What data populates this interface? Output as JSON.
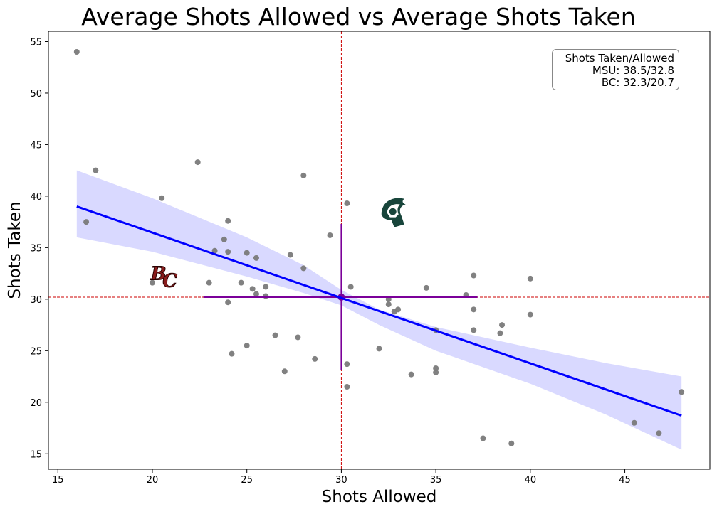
{
  "chart_data": {
    "type": "scatter",
    "title": "Average Shots Allowed vs Average Shots Taken",
    "xlabel": "Shots Allowed",
    "ylabel": "Shots Taken",
    "xlim": [
      14.5,
      49.5
    ],
    "ylim": [
      13.5,
      56.0
    ],
    "xticks": [
      15,
      20,
      25,
      30,
      35,
      40,
      45
    ],
    "yticks": [
      15,
      20,
      25,
      30,
      35,
      40,
      45,
      50,
      55
    ],
    "grid": false,
    "points": [
      [
        16.0,
        54.0
      ],
      [
        16.5,
        37.5
      ],
      [
        17.0,
        42.5
      ],
      [
        20.0,
        31.6
      ],
      [
        20.5,
        39.8
      ],
      [
        22.4,
        43.3
      ],
      [
        23.0,
        31.6
      ],
      [
        23.3,
        34.7
      ],
      [
        23.8,
        35.8
      ],
      [
        24.0,
        37.6
      ],
      [
        24.0,
        34.6
      ],
      [
        24.0,
        29.7
      ],
      [
        24.2,
        24.7
      ],
      [
        24.7,
        31.6
      ],
      [
        25.0,
        34.5
      ],
      [
        25.0,
        25.5
      ],
      [
        25.3,
        31.0
      ],
      [
        25.5,
        30.5
      ],
      [
        25.5,
        34.0
      ],
      [
        26.0,
        31.2
      ],
      [
        26.0,
        30.3
      ],
      [
        26.5,
        26.5
      ],
      [
        27.0,
        23.0
      ],
      [
        27.3,
        34.3
      ],
      [
        27.7,
        26.3
      ],
      [
        28.0,
        33.0
      ],
      [
        28.0,
        42.0
      ],
      [
        28.6,
        24.2
      ],
      [
        29.4,
        36.2
      ],
      [
        30.3,
        39.3
      ],
      [
        30.3,
        23.7
      ],
      [
        30.3,
        21.5
      ],
      [
        30.5,
        31.2
      ],
      [
        32.0,
        25.2
      ],
      [
        32.5,
        30.0
      ],
      [
        32.5,
        29.5
      ],
      [
        32.8,
        28.8
      ],
      [
        33.0,
        29.0
      ],
      [
        33.7,
        22.7
      ],
      [
        34.5,
        31.1
      ],
      [
        35.0,
        27.0
      ],
      [
        35.0,
        23.3
      ],
      [
        35.0,
        22.9
      ],
      [
        36.6,
        30.4
      ],
      [
        37.0,
        32.3
      ],
      [
        37.0,
        29.0
      ],
      [
        37.0,
        27.0
      ],
      [
        37.5,
        16.5
      ],
      [
        38.4,
        26.7
      ],
      [
        38.5,
        27.5
      ],
      [
        39.0,
        16.0
      ],
      [
        40.0,
        32.0
      ],
      [
        40.0,
        28.5
      ],
      [
        45.5,
        18.0
      ],
      [
        46.8,
        17.0
      ],
      [
        48.0,
        21.0
      ]
    ],
    "regression": {
      "x_range": [
        16.0,
        48.0
      ],
      "line": [
        [
          16.0,
          39.0
        ],
        [
          48.0,
          18.7
        ]
      ],
      "ci_upper": [
        [
          16.0,
          42.5
        ],
        [
          20.0,
          39.8
        ],
        [
          25.0,
          36.0
        ],
        [
          28.0,
          33.3
        ],
        [
          30.0,
          30.9
        ],
        [
          32.0,
          29.0
        ],
        [
          35.0,
          27.3
        ],
        [
          40.0,
          25.3
        ],
        [
          44.0,
          23.8
        ],
        [
          48.0,
          22.5
        ]
      ],
      "ci_lower": [
        [
          16.0,
          36.0
        ],
        [
          20.0,
          34.6
        ],
        [
          25.0,
          32.2
        ],
        [
          28.0,
          30.6
        ],
        [
          30.0,
          29.4
        ],
        [
          32.0,
          27.5
        ],
        [
          35.0,
          25.0
        ],
        [
          40.0,
          21.8
        ],
        [
          44.0,
          18.8
        ],
        [
          48.0,
          15.4
        ]
      ],
      "line_color": "#0000ff",
      "band_color": "#d9d9ff"
    },
    "reference_lines": {
      "x": 30.0,
      "y": 30.2,
      "color": "#cc0000",
      "style": "dashed"
    },
    "mean_point": {
      "x": 30.0,
      "y": 30.2,
      "x_err": [
        22.7,
        37.2
      ],
      "y_err": [
        23.1,
        37.3
      ],
      "color": "#7b0099"
    },
    "team_markers": [
      {
        "team": "MSU",
        "x": 32.8,
        "y": 38.5,
        "icon": "spartan-helmet-icon",
        "color": "#18453b"
      },
      {
        "team": "BC",
        "x": 20.7,
        "y": 32.3,
        "icon": "bc-logo-icon",
        "color": "#8a1c1c"
      }
    ],
    "point_color": "#7a7a7a",
    "legend": {
      "placement": "top-right",
      "lines": [
        "Shots Taken/Allowed",
        "MSU: 38.5/32.8",
        "BC: 32.3/20.7"
      ]
    }
  }
}
